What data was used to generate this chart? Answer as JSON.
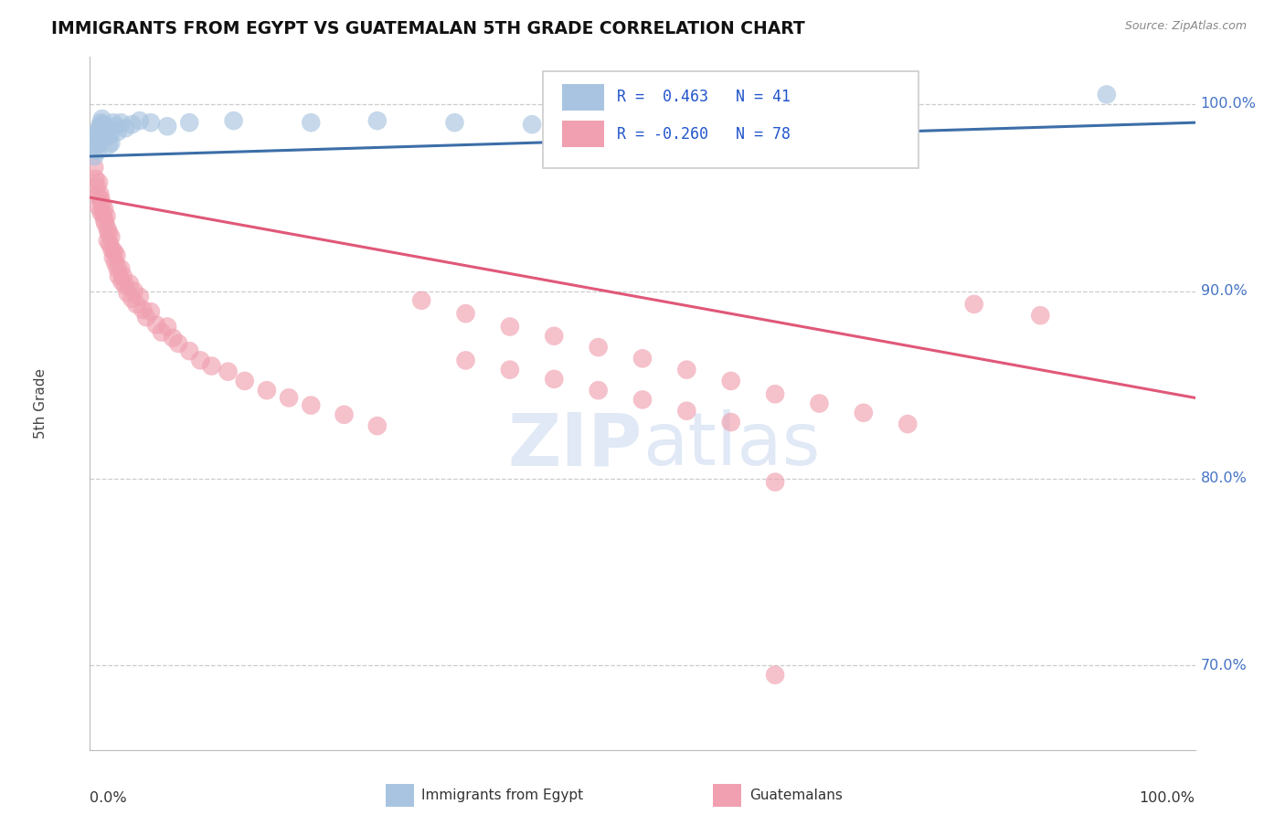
{
  "title": "IMMIGRANTS FROM EGYPT VS GUATEMALAN 5TH GRADE CORRELATION CHART",
  "source": "Source: ZipAtlas.com",
  "ylabel": "5th Grade",
  "xlim": [
    0.0,
    1.0
  ],
  "ylim": [
    0.655,
    1.025
  ],
  "yticks": [
    0.7,
    0.8,
    0.9,
    1.0
  ],
  "ytick_labels": [
    "70.0%",
    "80.0%",
    "90.0%",
    "100.0%"
  ],
  "r_egypt": 0.463,
  "n_egypt": 41,
  "r_guatemalan": -0.26,
  "n_guatemalan": 78,
  "egypt_color": "#a8c4e0",
  "egypt_line_color": "#3c6ea8",
  "guatemalan_color": "#f0a0b0",
  "guatemalan_line_color": "#e05878",
  "legend_r_color": "#2255cc",
  "egypt_x": [
    0.004,
    0.005,
    0.006,
    0.007,
    0.007,
    0.008,
    0.008,
    0.009,
    0.009,
    0.01,
    0.01,
    0.011,
    0.011,
    0.012,
    0.013,
    0.014,
    0.015,
    0.016,
    0.017,
    0.018,
    0.019,
    0.021,
    0.023,
    0.025,
    0.028,
    0.032,
    0.038,
    0.045,
    0.055,
    0.07,
    0.09,
    0.13,
    0.2,
    0.26,
    0.33,
    0.4,
    0.47,
    0.54,
    0.61,
    0.7,
    0.92
  ],
  "egypt_y": [
    0.972,
    0.978,
    0.981,
    0.984,
    0.975,
    0.986,
    0.979,
    0.988,
    0.983,
    0.99,
    0.984,
    0.992,
    0.987,
    0.989,
    0.985,
    0.982,
    0.987,
    0.984,
    0.978,
    0.983,
    0.979,
    0.99,
    0.988,
    0.985,
    0.99,
    0.987,
    0.989,
    0.991,
    0.99,
    0.988,
    0.99,
    0.991,
    0.99,
    0.991,
    0.99,
    0.989,
    0.991,
    0.99,
    0.99,
    0.99,
    1.005
  ],
  "guatemalan_x": [
    0.004,
    0.005,
    0.006,
    0.007,
    0.008,
    0.008,
    0.009,
    0.01,
    0.01,
    0.011,
    0.012,
    0.013,
    0.013,
    0.014,
    0.015,
    0.016,
    0.016,
    0.017,
    0.018,
    0.019,
    0.02,
    0.021,
    0.022,
    0.023,
    0.024,
    0.025,
    0.026,
    0.028,
    0.029,
    0.03,
    0.032,
    0.034,
    0.036,
    0.038,
    0.04,
    0.042,
    0.045,
    0.048,
    0.051,
    0.055,
    0.06,
    0.065,
    0.07,
    0.075,
    0.08,
    0.09,
    0.1,
    0.11,
    0.125,
    0.14,
    0.16,
    0.18,
    0.2,
    0.23,
    0.26,
    0.3,
    0.34,
    0.38,
    0.42,
    0.46,
    0.5,
    0.54,
    0.58,
    0.62,
    0.66,
    0.7,
    0.74,
    0.8,
    0.86,
    0.62,
    0.34,
    0.38,
    0.42,
    0.46,
    0.5,
    0.54,
    0.58,
    0.62
  ],
  "guatemalan_y": [
    0.966,
    0.96,
    0.956,
    0.951,
    0.958,
    0.945,
    0.952,
    0.949,
    0.942,
    0.946,
    0.941,
    0.944,
    0.938,
    0.936,
    0.94,
    0.933,
    0.927,
    0.931,
    0.925,
    0.929,
    0.922,
    0.918,
    0.921,
    0.915,
    0.919,
    0.912,
    0.908,
    0.912,
    0.905,
    0.908,
    0.903,
    0.899,
    0.904,
    0.896,
    0.9,
    0.893,
    0.897,
    0.89,
    0.886,
    0.889,
    0.882,
    0.878,
    0.881,
    0.875,
    0.872,
    0.868,
    0.863,
    0.86,
    0.857,
    0.852,
    0.847,
    0.843,
    0.839,
    0.834,
    0.828,
    0.895,
    0.888,
    0.881,
    0.876,
    0.87,
    0.864,
    0.858,
    0.852,
    0.845,
    0.84,
    0.835,
    0.829,
    0.893,
    0.887,
    0.798,
    0.863,
    0.858,
    0.853,
    0.847,
    0.842,
    0.836,
    0.83,
    0.695
  ],
  "guat_line_x0": 0.0,
  "guat_line_y0": 0.95,
  "guat_line_x1": 1.0,
  "guat_line_y1": 0.843,
  "egypt_line_x0": 0.0,
  "egypt_line_y0": 0.972,
  "egypt_line_x1": 1.0,
  "egypt_line_y1": 0.99
}
